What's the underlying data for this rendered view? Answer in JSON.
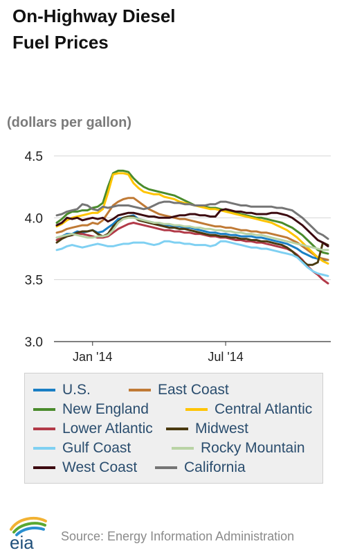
{
  "title_line1": "On-Highway Diesel",
  "title_line2": "Fuel Prices",
  "units_label": "(dollars per gallon)",
  "source_text": "Source: Energy Information Administration",
  "logo_text": "eia",
  "chart_data": {
    "type": "line",
    "title": "On-Highway Diesel Fuel Prices",
    "ylabel": "(dollars per gallon)",
    "xlabel": "",
    "ylim": [
      3.0,
      4.5
    ],
    "yticks": [
      "3.0",
      "3.5",
      "4.0",
      "4.5"
    ],
    "xticks": [
      {
        "label": "Jan '14",
        "week": 7
      },
      {
        "label": "Jul '14",
        "week": 33
      }
    ],
    "grid": "horizontal",
    "legend_position": "bottom",
    "x_weeks": 54,
    "series": [
      {
        "name": "U.S.",
        "color": "#1a7fc4",
        "values": [
          3.84,
          3.85,
          3.87,
          3.87,
          3.89,
          3.88,
          3.89,
          3.9,
          3.88,
          3.89,
          3.92,
          3.95,
          3.99,
          4.0,
          4.01,
          4.02,
          3.99,
          3.98,
          3.97,
          3.96,
          3.95,
          3.94,
          3.94,
          3.93,
          3.93,
          3.92,
          3.92,
          3.91,
          3.9,
          3.89,
          3.88,
          3.88,
          3.87,
          3.87,
          3.86,
          3.86,
          3.85,
          3.85,
          3.85,
          3.84,
          3.84,
          3.83,
          3.82,
          3.81,
          3.8,
          3.79,
          3.77,
          3.75,
          3.72,
          3.7,
          3.68,
          3.67,
          3.66,
          3.66
        ]
      },
      {
        "name": "East Coast",
        "color": "#c07a35",
        "values": [
          3.88,
          3.89,
          3.91,
          3.92,
          3.93,
          3.94,
          3.94,
          3.96,
          3.95,
          3.98,
          4.04,
          4.1,
          4.13,
          4.15,
          4.16,
          4.16,
          4.13,
          4.1,
          4.07,
          4.05,
          4.03,
          4.02,
          4.01,
          4.0,
          3.99,
          3.99,
          3.98,
          3.97,
          3.96,
          3.95,
          3.94,
          3.93,
          3.93,
          3.92,
          3.92,
          3.91,
          3.9,
          3.9,
          3.89,
          3.89,
          3.88,
          3.88,
          3.87,
          3.86,
          3.85,
          3.84,
          3.82,
          3.8,
          3.77,
          3.74,
          3.71,
          3.68,
          3.67,
          3.66
        ]
      },
      {
        "name": "New England",
        "color": "#4a8b2c",
        "values": [
          3.96,
          3.99,
          4.03,
          4.05,
          4.05,
          4.06,
          4.06,
          4.08,
          4.09,
          4.12,
          4.25,
          4.36,
          4.38,
          4.38,
          4.37,
          4.32,
          4.28,
          4.25,
          4.23,
          4.22,
          4.21,
          4.2,
          4.19,
          4.18,
          4.16,
          4.14,
          4.12,
          4.1,
          4.1,
          4.09,
          4.08,
          4.08,
          4.07,
          4.06,
          4.05,
          4.04,
          4.03,
          4.02,
          4.01,
          4.0,
          4.0,
          3.99,
          3.98,
          3.97,
          3.96,
          3.94,
          3.92,
          3.89,
          3.86,
          3.82,
          3.78,
          3.74,
          3.72,
          3.71
        ]
      },
      {
        "name": "Central Atlantic",
        "color": "#ffc400",
        "values": [
          3.93,
          3.95,
          3.98,
          4.0,
          4.01,
          4.02,
          4.03,
          4.04,
          4.04,
          4.07,
          4.2,
          4.35,
          4.36,
          4.36,
          4.35,
          4.28,
          4.24,
          4.21,
          4.2,
          4.19,
          4.19,
          4.17,
          4.16,
          4.15,
          4.13,
          4.12,
          4.11,
          4.1,
          4.09,
          4.08,
          4.07,
          4.07,
          4.06,
          4.05,
          4.04,
          4.03,
          4.02,
          4.01,
          4.0,
          3.99,
          3.98,
          3.97,
          3.96,
          3.94,
          3.92,
          3.9,
          3.87,
          3.84,
          3.8,
          3.76,
          3.72,
          3.68,
          3.65,
          3.63
        ]
      },
      {
        "name": "Lower Atlantic",
        "color": "#b23a48",
        "values": [
          3.82,
          3.84,
          3.85,
          3.86,
          3.87,
          3.87,
          3.86,
          3.85,
          3.84,
          3.84,
          3.85,
          3.88,
          3.91,
          3.93,
          3.95,
          3.96,
          3.95,
          3.94,
          3.93,
          3.92,
          3.91,
          3.9,
          3.9,
          3.89,
          3.89,
          3.88,
          3.88,
          3.87,
          3.87,
          3.86,
          3.85,
          3.85,
          3.84,
          3.84,
          3.83,
          3.82,
          3.82,
          3.81,
          3.81,
          3.8,
          3.8,
          3.79,
          3.78,
          3.77,
          3.76,
          3.75,
          3.73,
          3.7,
          3.66,
          3.61,
          3.57,
          3.54,
          3.5,
          3.47
        ]
      },
      {
        "name": "Midwest",
        "color": "#4a3a10",
        "values": [
          3.8,
          3.83,
          3.85,
          3.86,
          3.88,
          3.89,
          3.89,
          3.9,
          3.87,
          3.85,
          3.87,
          3.93,
          3.97,
          4.0,
          4.01,
          4.01,
          3.98,
          3.97,
          3.96,
          3.95,
          3.94,
          3.93,
          3.92,
          3.92,
          3.91,
          3.91,
          3.9,
          3.89,
          3.88,
          3.87,
          3.86,
          3.86,
          3.85,
          3.85,
          3.84,
          3.84,
          3.83,
          3.83,
          3.82,
          3.82,
          3.81,
          3.81,
          3.8,
          3.79,
          3.78,
          3.76,
          3.73,
          3.69,
          3.65,
          3.62,
          3.62,
          3.64,
          3.8,
          3.78
        ]
      },
      {
        "name": "Gulf Coast",
        "color": "#7fd0f2",
        "values": [
          3.74,
          3.75,
          3.77,
          3.78,
          3.77,
          3.76,
          3.77,
          3.78,
          3.79,
          3.78,
          3.77,
          3.77,
          3.78,
          3.79,
          3.79,
          3.8,
          3.8,
          3.8,
          3.79,
          3.78,
          3.79,
          3.81,
          3.81,
          3.8,
          3.8,
          3.79,
          3.79,
          3.78,
          3.78,
          3.78,
          3.77,
          3.78,
          3.81,
          3.81,
          3.8,
          3.79,
          3.78,
          3.77,
          3.76,
          3.76,
          3.75,
          3.75,
          3.74,
          3.73,
          3.72,
          3.71,
          3.7,
          3.68,
          3.64,
          3.6,
          3.57,
          3.55,
          3.54,
          3.53
        ]
      },
      {
        "name": "Rocky Mountain",
        "color": "#b9d3a5",
        "values": [
          3.84,
          3.85,
          3.86,
          3.87,
          3.86,
          3.85,
          3.84,
          3.84,
          3.85,
          3.85,
          3.86,
          3.9,
          3.96,
          3.99,
          4.0,
          4.0,
          3.99,
          3.98,
          3.97,
          3.96,
          3.96,
          3.95,
          3.95,
          3.94,
          3.94,
          3.93,
          3.93,
          3.92,
          3.92,
          3.91,
          3.91,
          3.9,
          3.9,
          3.89,
          3.89,
          3.88,
          3.88,
          3.87,
          3.87,
          3.86,
          3.86,
          3.85,
          3.84,
          3.83,
          3.82,
          3.81,
          3.8,
          3.79,
          3.78,
          3.77,
          3.76,
          3.75,
          3.74,
          3.74
        ]
      },
      {
        "name": "West Coast",
        "color": "#3c0a10",
        "values": [
          3.94,
          3.96,
          4.0,
          3.99,
          4.0,
          3.98,
          3.99,
          4.0,
          3.99,
          4.0,
          3.97,
          3.99,
          4.02,
          4.03,
          4.04,
          4.04,
          4.03,
          4.02,
          4.01,
          4.01,
          4.0,
          4.0,
          4.0,
          4.01,
          4.02,
          4.02,
          4.03,
          4.03,
          4.02,
          4.02,
          4.01,
          4.01,
          4.06,
          4.07,
          4.06,
          4.05,
          4.05,
          4.04,
          4.04,
          4.03,
          4.03,
          4.03,
          4.04,
          4.04,
          4.03,
          4.02,
          4.0,
          3.97,
          3.94,
          3.9,
          3.86,
          3.82,
          3.8,
          3.77
        ]
      },
      {
        "name": "California",
        "color": "#757575",
        "values": [
          4.02,
          4.03,
          4.05,
          4.06,
          4.07,
          4.11,
          4.1,
          4.07,
          4.06,
          4.09,
          4.08,
          4.09,
          4.1,
          4.1,
          4.1,
          4.09,
          4.08,
          4.07,
          4.08,
          4.1,
          4.12,
          4.13,
          4.13,
          4.12,
          4.12,
          4.11,
          4.11,
          4.1,
          4.1,
          4.1,
          4.11,
          4.11,
          4.13,
          4.13,
          4.12,
          4.11,
          4.1,
          4.1,
          4.09,
          4.09,
          4.09,
          4.09,
          4.09,
          4.08,
          4.08,
          4.07,
          4.06,
          4.03,
          4.0,
          3.96,
          3.92,
          3.88,
          3.86,
          3.83
        ]
      }
    ]
  }
}
